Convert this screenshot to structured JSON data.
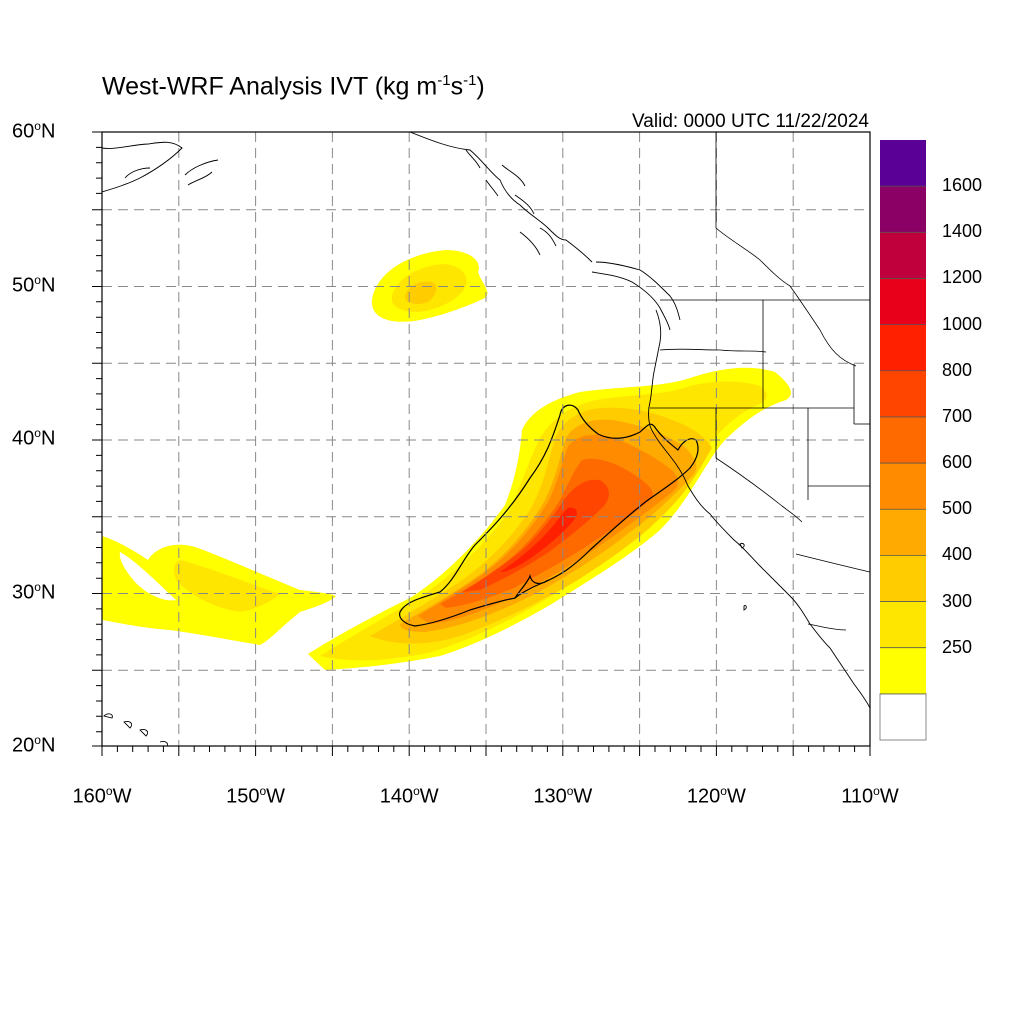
{
  "title": {
    "main": "West-WRF Analysis IVT (kg m",
    "sup1": "-1",
    "mid": "s",
    "sup2": "-1",
    "end": ")"
  },
  "valid": "Valid: 0000 UTC 11/22/2024",
  "map": {
    "projection": "lat-lon",
    "lon_range": [
      -160,
      -110
    ],
    "lat_range": [
      20,
      60
    ],
    "gridlines": "dashed",
    "lat_labels": [
      {
        "lat": 60,
        "num": "60",
        "deg": "o",
        "hem": "N"
      },
      {
        "lat": 50,
        "num": "50",
        "deg": "o",
        "hem": "N"
      },
      {
        "lat": 40,
        "num": "40",
        "deg": "o",
        "hem": "N"
      },
      {
        "lat": 30,
        "num": "30",
        "deg": "o",
        "hem": "N"
      },
      {
        "lat": 20,
        "num": "20",
        "deg": "o",
        "hem": "N"
      }
    ],
    "lon_labels": [
      {
        "lon": -160,
        "num": "160",
        "deg": "o",
        "hem": "W"
      },
      {
        "lon": -150,
        "num": "150",
        "deg": "o",
        "hem": "W"
      },
      {
        "lon": -140,
        "num": "140",
        "deg": "o",
        "hem": "W"
      },
      {
        "lon": -130,
        "num": "130",
        "deg": "o",
        "hem": "W"
      },
      {
        "lon": -120,
        "num": "120",
        "deg": "o",
        "hem": "W"
      },
      {
        "lon": -110,
        "num": "110",
        "deg": "o",
        "hem": "W"
      }
    ]
  },
  "colorbar": {
    "levels": [
      {
        "color": "#ffffff",
        "label": ""
      },
      {
        "color": "#ffff00",
        "label": "250"
      },
      {
        "color": "#ffe600",
        "label": "300"
      },
      {
        "color": "#ffcc00",
        "label": "400"
      },
      {
        "color": "#ffaa00",
        "label": "500"
      },
      {
        "color": "#ff8c00",
        "label": "600"
      },
      {
        "color": "#ff6a00",
        "label": "700"
      },
      {
        "color": "#ff4500",
        "label": "800"
      },
      {
        "color": "#ff2000",
        "label": "1000"
      },
      {
        "color": "#e8001a",
        "label": "1200"
      },
      {
        "color": "#c0003c",
        "label": "1400"
      },
      {
        "color": "#8b0064",
        "label": "1600"
      },
      {
        "color": "#5a0096",
        "label": ""
      }
    ]
  }
}
